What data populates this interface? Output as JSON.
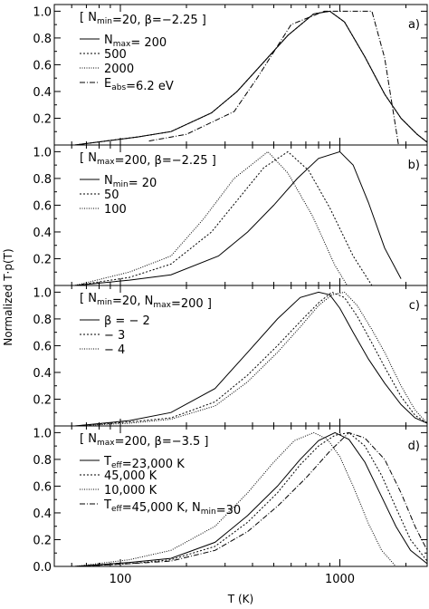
{
  "chart_data": {
    "type": "line",
    "xlabel": "T (K)",
    "ylabel": "Normalized T·p(T)",
    "x_scale": "log",
    "xlim": [
      50,
      2500
    ],
    "x_ticks": [
      100,
      1000
    ],
    "y_ticks": [
      0.0,
      0.2,
      0.4,
      0.6,
      0.8,
      1.0
    ],
    "panels": [
      {
        "tag": "a)",
        "ylim": [
          0.0,
          1.05
        ],
        "y_tick_labels": [
          "0.2",
          "0.4",
          "0.6",
          "0.8",
          "1.0"
        ],
        "legend_title": "[ N_min=20, β=−2.25 ]",
        "legend": [
          "N_max= 200",
          "500",
          "2000",
          "E_abs=6.2 eV"
        ],
        "series": [
          {
            "name": "N_max= 200",
            "dash": "solid",
            "x": [
              62,
              120,
              170,
              260,
              340,
              450,
              580,
              760,
              900,
              1050,
              1300,
              1600,
              1900,
              2250,
              2500
            ],
            "y": [
              0.0,
              0.06,
              0.1,
              0.24,
              0.4,
              0.62,
              0.82,
              0.98,
              1.0,
              0.92,
              0.66,
              0.38,
              0.2,
              0.08,
              0.02
            ]
          },
          {
            "name": "500",
            "dash": "dot",
            "x": [
              62,
              120,
              170,
              260,
              340,
              450,
              580,
              760,
              900,
              1050,
              1300,
              1600,
              1900,
              2250,
              2500
            ],
            "y": [
              0.0,
              0.06,
              0.1,
              0.24,
              0.4,
              0.62,
              0.82,
              0.98,
              1.0,
              0.92,
              0.66,
              0.38,
              0.2,
              0.08,
              0.02
            ]
          },
          {
            "name": "2000",
            "dash": "fine",
            "x": [
              62,
              120,
              170,
              260,
              340,
              450,
              580,
              760,
              900,
              1050,
              1300,
              1600,
              1900,
              2250,
              2500
            ],
            "y": [
              0.0,
              0.06,
              0.1,
              0.24,
              0.4,
              0.62,
              0.82,
              0.98,
              1.0,
              0.92,
              0.66,
              0.38,
              0.2,
              0.08,
              0.02
            ]
          },
          {
            "name": "E_abs=6.2 eV",
            "dash": "dashdot",
            "x": [
              135,
              200,
              330,
              420,
              600,
              850,
              1000,
              1400,
              1600,
              1850
            ],
            "y": [
              0.03,
              0.08,
              0.25,
              0.5,
              0.9,
              1.0,
              1.0,
              1.0,
              0.65,
              0.0
            ]
          }
        ]
      },
      {
        "tag": "b)",
        "ylim": [
          0.0,
          1.05
        ],
        "y_tick_labels": [
          "0.2",
          "0.4",
          "0.6",
          "0.8",
          "1.0"
        ],
        "legend_title": "[ N_max=200, β=−2.25 ]",
        "legend": [
          "N_min= 20",
          "50",
          "100"
        ],
        "series": [
          {
            "name": "N_min= 20",
            "dash": "solid",
            "x": [
              62,
              110,
              170,
              280,
              380,
              500,
              640,
              800,
              1000,
              1150,
              1350,
              1600,
              1900
            ],
            "y": [
              0.0,
              0.04,
              0.08,
              0.22,
              0.4,
              0.6,
              0.8,
              0.95,
              1.0,
              0.9,
              0.62,
              0.28,
              0.05
            ]
          },
          {
            "name": "50",
            "dash": "dot",
            "x": [
              62,
              110,
              170,
              260,
              350,
              450,
              580,
              720,
              900,
              1150,
              1400
            ],
            "y": [
              0.0,
              0.06,
              0.16,
              0.4,
              0.66,
              0.88,
              1.0,
              0.86,
              0.58,
              0.22,
              0.0
            ]
          },
          {
            "name": "100",
            "dash": "fine",
            "x": [
              62,
              110,
              170,
              240,
              330,
              470,
              580,
              750,
              950,
              1080
            ],
            "y": [
              0.0,
              0.1,
              0.22,
              0.5,
              0.8,
              1.0,
              0.84,
              0.52,
              0.15,
              0.0
            ]
          }
        ]
      },
      {
        "tag": "c)",
        "ylim": [
          0.0,
          1.05
        ],
        "y_tick_labels": [
          "0.2",
          "0.4",
          "0.6",
          "0.8",
          "1.0"
        ],
        "legend_title": "[ N_min=20, N_max=200 ]",
        "legend": [
          "β = − 2",
          "− 3",
          "− 4"
        ],
        "series": [
          {
            "name": "β = − 2",
            "dash": "solid",
            "x": [
              62,
              110,
              170,
              270,
              380,
              520,
              660,
              800,
              900,
              1000,
              1150,
              1350,
              1600,
              1900,
              2200,
              2500
            ],
            "y": [
              0.0,
              0.04,
              0.1,
              0.28,
              0.55,
              0.8,
              0.96,
              1.0,
              0.98,
              0.88,
              0.7,
              0.5,
              0.32,
              0.16,
              0.06,
              0.02
            ]
          },
          {
            "name": "− 3",
            "dash": "dot",
            "x": [
              62,
              110,
              170,
              270,
              380,
              520,
              660,
              800,
              920,
              1050,
              1200,
              1400,
              1600,
              1900,
              2200,
              2500
            ],
            "y": [
              0.0,
              0.03,
              0.06,
              0.18,
              0.38,
              0.6,
              0.78,
              0.92,
              1.0,
              0.96,
              0.82,
              0.62,
              0.44,
              0.22,
              0.08,
              0.02
            ]
          },
          {
            "name": "− 4",
            "dash": "fine",
            "x": [
              62,
              110,
              170,
              270,
              380,
              520,
              660,
              800,
              920,
              1050,
              1200,
              1400,
              1600,
              1900,
              2200,
              2500
            ],
            "y": [
              0.0,
              0.02,
              0.05,
              0.15,
              0.33,
              0.55,
              0.74,
              0.9,
              0.98,
              1.0,
              0.9,
              0.72,
              0.55,
              0.3,
              0.12,
              0.02
            ]
          }
        ]
      },
      {
        "tag": "d)",
        "ylim": [
          0.0,
          1.05
        ],
        "y_tick_labels": [
          "0.0",
          "0.2",
          "0.4",
          "0.6",
          "0.8",
          "1.0"
        ],
        "legend_title": "[ N_max=200, β=−3.5 ]",
        "legend": [
          "T_eff=23,000 K",
          "45,000 K",
          "10,000 K",
          "T_eff=45,000 K, N_min=30"
        ],
        "series": [
          {
            "name": "T_eff=23,000 K",
            "dash": "solid",
            "x": [
              62,
              110,
              170,
              270,
              380,
              520,
              660,
              800,
              950,
              1100,
              1300,
              1550,
              1800,
              2100,
              2500
            ],
            "y": [
              0.0,
              0.03,
              0.06,
              0.18,
              0.38,
              0.6,
              0.8,
              0.94,
              1.0,
              0.95,
              0.78,
              0.52,
              0.3,
              0.12,
              0.02
            ]
          },
          {
            "name": "45,000 K",
            "dash": "dot",
            "x": [
              62,
              110,
              170,
              270,
              380,
              520,
              660,
              800,
              950,
              1100,
              1300,
              1550,
              1800,
              2100,
              2500
            ],
            "y": [
              0.0,
              0.02,
              0.05,
              0.15,
              0.33,
              0.55,
              0.76,
              0.9,
              0.98,
              1.0,
              0.9,
              0.68,
              0.44,
              0.2,
              0.04
            ]
          },
          {
            "name": "10,000 K",
            "dash": "fine",
            "x": [
              62,
              110,
              170,
              270,
              380,
              500,
              620,
              760,
              880,
              1000,
              1150,
              1350,
              1550,
              1800
            ],
            "y": [
              0.0,
              0.05,
              0.12,
              0.3,
              0.55,
              0.78,
              0.94,
              1.0,
              0.95,
              0.82,
              0.6,
              0.32,
              0.12,
              0.0
            ]
          },
          {
            "name": "T_eff=45,000 K, N_min=30",
            "dash": "dashdot",
            "x": [
              62,
              110,
              170,
              270,
              380,
              520,
              700,
              900,
              1100,
              1300,
              1600,
              1900,
              2200,
              2500
            ],
            "y": [
              0.0,
              0.02,
              0.04,
              0.12,
              0.26,
              0.45,
              0.66,
              0.86,
              1.0,
              0.96,
              0.8,
              0.55,
              0.3,
              0.12
            ]
          }
        ]
      }
    ]
  }
}
